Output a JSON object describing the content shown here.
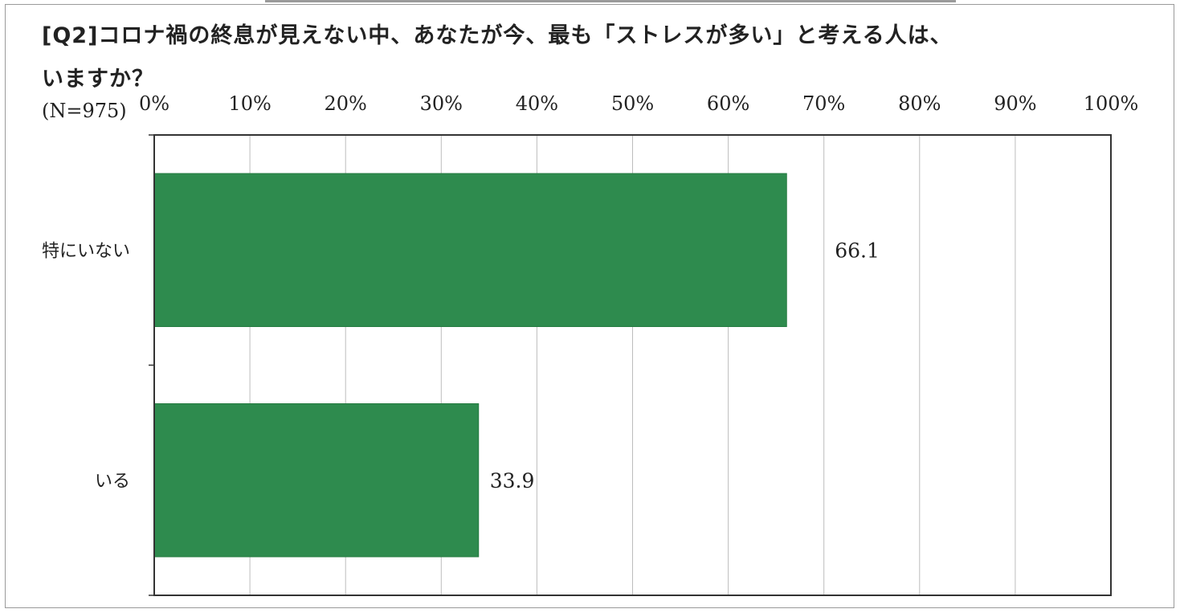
{
  "header": {
    "title_line1": "[Q2]コロナ禍の終息が見えない中、あなたが今、最も「ストレスが多い」と考える人は、",
    "title_line2": "いますか？",
    "n_label": "(N=975)"
  },
  "colors": {
    "bar": "#2e8b4e",
    "grid": "#bdbdbd",
    "axis": "#333333"
  },
  "chart_data": {
    "type": "bar",
    "orientation": "horizontal",
    "categories": [
      "特にいない",
      "いる"
    ],
    "values": [
      66.1,
      33.9
    ],
    "data_labels": [
      "66.1",
      "33.9"
    ],
    "tick_labels": [
      "0%",
      "10%",
      "20%",
      "30%",
      "40%",
      "50%",
      "60%",
      "70%",
      "80%",
      "90%",
      "100%"
    ],
    "xlim": [
      0,
      100
    ],
    "grid": true,
    "legend": "none"
  }
}
